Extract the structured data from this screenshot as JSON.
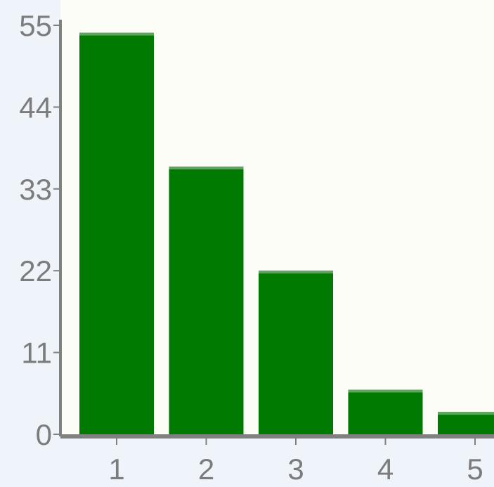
{
  "chart_data": {
    "type": "bar",
    "title": "",
    "xlabel": "",
    "ylabel": "",
    "categories": [
      "1",
      "2",
      "3",
      "4",
      "5"
    ],
    "values": [
      54,
      36,
      22,
      6,
      3
    ],
    "ylim": [
      0,
      55
    ],
    "yticks": [
      0,
      11,
      22,
      33,
      44,
      55
    ],
    "ytick_labels": [
      "0",
      "11",
      "22",
      "33",
      "44",
      "55"
    ],
    "grid": false,
    "legend": "none",
    "colors": {
      "bar": "#007a00",
      "bar_highlight": "#5aa85a",
      "plot_background": "#fdfdf8",
      "page_background": "#eef4fa",
      "axis": "#808080",
      "tick_text": "#7c7c7c"
    }
  }
}
